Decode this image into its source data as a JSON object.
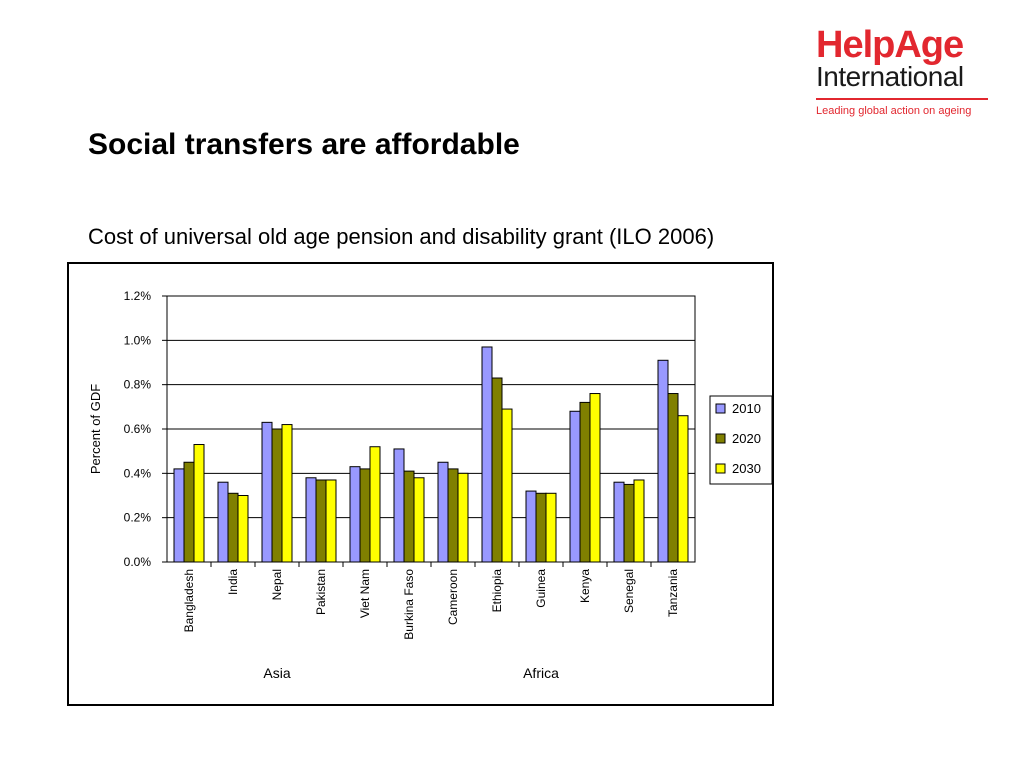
{
  "logo": {
    "brand": "HelpAge",
    "sub": "International",
    "tagline": "Leading global action on ageing",
    "color": "#e2272f"
  },
  "slide": {
    "title": "Social transfers are affordable",
    "subtitle": "Cost of universal old age pension and disability grant (ILO 2006)"
  },
  "chart_data": {
    "type": "bar",
    "categories": [
      "Bangladesh",
      "India",
      "Nepal",
      "Pakistan",
      "Viet Nam",
      "Burkina Faso",
      "Cameroon",
      "Ethiopia",
      "Guinea",
      "Kenya",
      "Senegal",
      "Tanzania"
    ],
    "groups": [
      {
        "label": "Asia",
        "from": 0,
        "to": 4
      },
      {
        "label": "Africa",
        "from": 5,
        "to": 11
      }
    ],
    "series": [
      {
        "name": "2010",
        "color": "#9999ff",
        "values": [
          0.42,
          0.36,
          0.63,
          0.38,
          0.43,
          0.51,
          0.45,
          0.97,
          0.32,
          0.68,
          0.36,
          0.91
        ]
      },
      {
        "name": "2020",
        "color": "#808000",
        "values": [
          0.45,
          0.31,
          0.6,
          0.37,
          0.42,
          0.41,
          0.42,
          0.83,
          0.31,
          0.72,
          0.35,
          0.76
        ]
      },
      {
        "name": "2030",
        "color": "#ffff00",
        "values": [
          0.53,
          0.3,
          0.62,
          0.37,
          0.52,
          0.38,
          0.4,
          0.69,
          0.31,
          0.76,
          0.37,
          0.66
        ]
      }
    ],
    "ylabel": "Percent of GDF",
    "xlabel": "",
    "ylim": [
      0,
      1.2
    ],
    "yticks": [
      0.0,
      0.2,
      0.4,
      0.6,
      0.8,
      1.0,
      1.2
    ],
    "ytick_labels": [
      "0.0%",
      "0.2%",
      "0.4%",
      "0.6%",
      "0.8%",
      "1.0%",
      "1.2%"
    ],
    "grid": true,
    "legend": "right"
  }
}
